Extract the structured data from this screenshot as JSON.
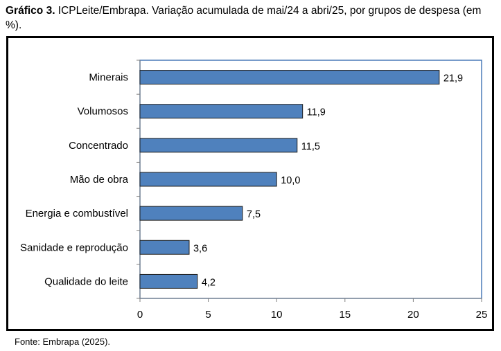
{
  "caption": {
    "label": "Gráfico 3.",
    "text": " ICPLeite/Embrapa. Variação acumulada de mai/24 a abri/25, por grupos de despesa (em %)."
  },
  "source": "Fonte: Embrapa (2025).",
  "chart_data": {
    "type": "bar",
    "orientation": "horizontal",
    "categories": [
      "Minerais",
      "Volumosos",
      "Concentrado",
      "Mão de obra",
      "Energia e combustível",
      "Sanidade e reprodução",
      "Qualidade do leite"
    ],
    "values": [
      21.9,
      11.9,
      11.5,
      10.0,
      7.5,
      3.6,
      4.2
    ],
    "value_labels": [
      "21,9",
      "11,9",
      "11,5",
      "10,0",
      "7,5",
      "3,6",
      "4,2"
    ],
    "xlim": [
      0,
      25
    ],
    "xticks": [
      0,
      5,
      10,
      15,
      20,
      25
    ],
    "grid": false,
    "legend": "none",
    "colors": {
      "bar": "#4f81bd",
      "bar_border": "#1f1f1f",
      "plot_border": "#4a7ab8",
      "axis": "#7f7f7f"
    }
  }
}
